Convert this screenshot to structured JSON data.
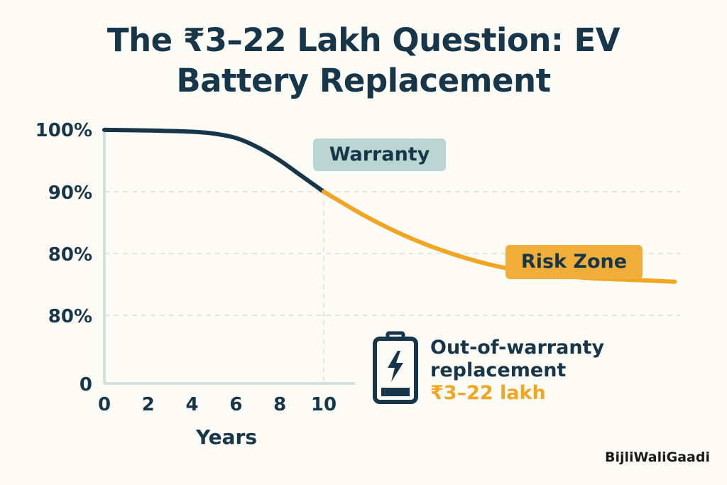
{
  "title_line1": "The ₹3–22 Lakh Question: EV",
  "title_line2": "Battery Replacement",
  "colors": {
    "background": "#fcfbf5",
    "navy": "#17364a",
    "amber": "#f0a523",
    "teal_pill": "#b9d6d3",
    "amber_pill": "#f0ad38",
    "grid": "#d9dfd9"
  },
  "chart_data": {
    "type": "line",
    "xlabel": "Years",
    "ylabel": "",
    "x_ticks": [
      "0",
      "2",
      "4",
      "6",
      "8",
      "10"
    ],
    "y_ticks": [
      "100%",
      "90%",
      "80%",
      "80%",
      "0"
    ],
    "xlim": [
      0,
      26
    ],
    "grid": "dashed horizontal lines plus a dashed vertical line at year 10",
    "series": [
      {
        "segment": "warranty",
        "color": "#17364a",
        "x": [
          0,
          2,
          4,
          5,
          6,
          7,
          8,
          9,
          10
        ],
        "y": [
          99.9,
          99.8,
          99.6,
          99.3,
          98.6,
          97.1,
          95.0,
          92.5,
          90.0
        ]
      },
      {
        "segment": "risk",
        "color": "#f0a523",
        "x": [
          10,
          12,
          14,
          16,
          18,
          20,
          22,
          24,
          26
        ],
        "y": [
          90.0,
          85.9,
          82.5,
          79.9,
          78.0,
          76.9,
          76.2,
          75.9,
          75.6
        ]
      }
    ],
    "annotations": {
      "warranty_label": "Warranty",
      "risk_label": "Risk Zone"
    }
  },
  "callout": {
    "icon": "battery-charging-icon",
    "line1": "Out-of-warranty",
    "line2": "replacement",
    "cost": "₹3–22 lakh"
  },
  "brand": "BijliWaliGaadi"
}
